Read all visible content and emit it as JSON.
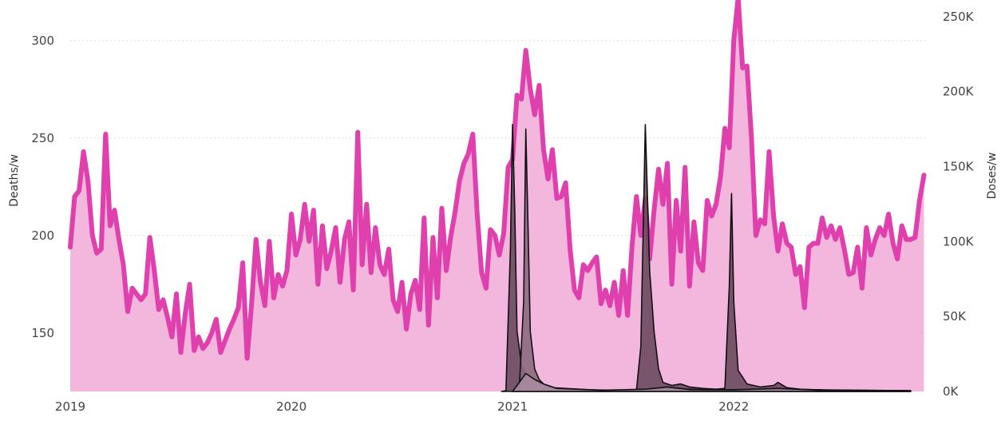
{
  "chart_data": {
    "type": "area",
    "title": "",
    "ylabel": "Deaths/w",
    "y2label": "Doses/w",
    "ylim": [
      120,
      320
    ],
    "y2lim": [
      0,
      260000
    ],
    "xlim": [
      2019.0,
      2022.88
    ],
    "grid": true,
    "x_ticks": [
      {
        "value": 2019,
        "label": "2019"
      },
      {
        "value": 2020,
        "label": "2020"
      },
      {
        "value": 2021,
        "label": "2021"
      },
      {
        "value": 2022,
        "label": "2022"
      }
    ],
    "y_ticks": [
      {
        "value": 150,
        "label": "150"
      },
      {
        "value": 200,
        "label": "200"
      },
      {
        "value": 250,
        "label": "250"
      },
      {
        "value": 300,
        "label": "300"
      }
    ],
    "y2_ticks": [
      {
        "value": 0,
        "label": "0K"
      },
      {
        "value": 50000,
        "label": "50K"
      },
      {
        "value": 100000,
        "label": "100K"
      },
      {
        "value": 150000,
        "label": "150K"
      },
      {
        "value": 200000,
        "label": "200K"
      },
      {
        "value": 250000,
        "label": "250K"
      }
    ],
    "colors": {
      "deaths_line": "#e040ad",
      "deaths_fill": "#f3b6dc",
      "doses_fill_1": "#6b4a5e",
      "doses_fill_2": "#8c6a80",
      "doses_fill_3": "#a88ca0",
      "doses_stroke": "#111111"
    },
    "series": [
      {
        "axis": "left",
        "style": "line-area",
        "points": [
          [
            2019.0,
            194
          ],
          [
            2019.02,
            220
          ],
          [
            2019.04,
            223
          ],
          [
            2019.06,
            243
          ],
          [
            2019.08,
            228
          ],
          [
            2019.1,
            200
          ],
          [
            2019.12,
            191
          ],
          [
            2019.14,
            193
          ],
          [
            2019.16,
            252
          ],
          [
            2019.18,
            205
          ],
          [
            2019.2,
            213
          ],
          [
            2019.22,
            198
          ],
          [
            2019.24,
            185
          ],
          [
            2019.26,
            161
          ],
          [
            2019.28,
            173
          ],
          [
            2019.3,
            170
          ],
          [
            2019.32,
            167
          ],
          [
            2019.34,
            170
          ],
          [
            2019.36,
            199
          ],
          [
            2019.38,
            182
          ],
          [
            2019.4,
            162
          ],
          [
            2019.42,
            167
          ],
          [
            2019.44,
            158
          ],
          [
            2019.46,
            148
          ],
          [
            2019.48,
            170
          ],
          [
            2019.5,
            140
          ],
          [
            2019.52,
            160
          ],
          [
            2019.54,
            175
          ],
          [
            2019.56,
            141
          ],
          [
            2019.58,
            148
          ],
          [
            2019.6,
            142
          ],
          [
            2019.62,
            145
          ],
          [
            2019.64,
            150
          ],
          [
            2019.66,
            157
          ],
          [
            2019.68,
            140
          ],
          [
            2019.7,
            146
          ],
          [
            2019.72,
            152
          ],
          [
            2019.74,
            157
          ],
          [
            2019.76,
            163
          ],
          [
            2019.78,
            186
          ],
          [
            2019.8,
            137
          ],
          [
            2019.82,
            165
          ],
          [
            2019.84,
            198
          ],
          [
            2019.86,
            176
          ],
          [
            2019.88,
            164
          ],
          [
            2019.9,
            197
          ],
          [
            2019.92,
            168
          ],
          [
            2019.94,
            180
          ],
          [
            2019.96,
            174
          ],
          [
            2019.98,
            182
          ],
          [
            2020.0,
            211
          ],
          [
            2020.02,
            190
          ],
          [
            2020.04,
            198
          ],
          [
            2020.06,
            216
          ],
          [
            2020.08,
            197
          ],
          [
            2020.1,
            213
          ],
          [
            2020.12,
            175
          ],
          [
            2020.14,
            205
          ],
          [
            2020.16,
            183
          ],
          [
            2020.18,
            192
          ],
          [
            2020.2,
            204
          ],
          [
            2020.22,
            176
          ],
          [
            2020.24,
            198
          ],
          [
            2020.26,
            207
          ],
          [
            2020.28,
            172
          ],
          [
            2020.3,
            253
          ],
          [
            2020.32,
            185
          ],
          [
            2020.34,
            216
          ],
          [
            2020.36,
            181
          ],
          [
            2020.38,
            204
          ],
          [
            2020.4,
            185
          ],
          [
            2020.42,
            180
          ],
          [
            2020.44,
            193
          ],
          [
            2020.46,
            167
          ],
          [
            2020.48,
            161
          ],
          [
            2020.5,
            176
          ],
          [
            2020.52,
            152
          ],
          [
            2020.54,
            170
          ],
          [
            2020.56,
            177
          ],
          [
            2020.58,
            162
          ],
          [
            2020.6,
            209
          ],
          [
            2020.62,
            154
          ],
          [
            2020.64,
            199
          ],
          [
            2020.66,
            168
          ],
          [
            2020.68,
            214
          ],
          [
            2020.7,
            182
          ],
          [
            2020.72,
            199
          ],
          [
            2020.74,
            212
          ],
          [
            2020.76,
            228
          ],
          [
            2020.78,
            237
          ],
          [
            2020.8,
            242
          ],
          [
            2020.82,
            252
          ],
          [
            2020.84,
            211
          ],
          [
            2020.86,
            181
          ],
          [
            2020.88,
            173
          ],
          [
            2020.9,
            203
          ],
          [
            2020.92,
            200
          ],
          [
            2020.94,
            190
          ],
          [
            2020.96,
            201
          ],
          [
            2020.98,
            235
          ],
          [
            2021.0,
            239
          ],
          [
            2021.02,
            272
          ],
          [
            2021.04,
            270
          ],
          [
            2021.06,
            295
          ],
          [
            2021.08,
            275
          ],
          [
            2021.1,
            262
          ],
          [
            2021.12,
            277
          ],
          [
            2021.14,
            244
          ],
          [
            2021.16,
            229
          ],
          [
            2021.18,
            244
          ],
          [
            2021.2,
            219
          ],
          [
            2021.22,
            220
          ],
          [
            2021.24,
            227
          ],
          [
            2021.26,
            193
          ],
          [
            2021.28,
            172
          ],
          [
            2021.3,
            168
          ],
          [
            2021.32,
            185
          ],
          [
            2021.34,
            182
          ],
          [
            2021.36,
            186
          ],
          [
            2021.38,
            189
          ],
          [
            2021.4,
            165
          ],
          [
            2021.42,
            172
          ],
          [
            2021.44,
            164
          ],
          [
            2021.46,
            176
          ],
          [
            2021.48,
            159
          ],
          [
            2021.5,
            182
          ],
          [
            2021.52,
            159
          ],
          [
            2021.54,
            194
          ],
          [
            2021.56,
            220
          ],
          [
            2021.58,
            200
          ],
          [
            2021.6,
            219
          ],
          [
            2021.62,
            188
          ],
          [
            2021.64,
            213
          ],
          [
            2021.66,
            234
          ],
          [
            2021.68,
            216
          ],
          [
            2021.7,
            237
          ],
          [
            2021.72,
            175
          ],
          [
            2021.74,
            218
          ],
          [
            2021.76,
            192
          ],
          [
            2021.78,
            235
          ],
          [
            2021.8,
            174
          ],
          [
            2021.82,
            207
          ],
          [
            2021.84,
            186
          ],
          [
            2021.86,
            182
          ],
          [
            2021.88,
            218
          ],
          [
            2021.9,
            210
          ],
          [
            2021.92,
            216
          ],
          [
            2021.94,
            230
          ],
          [
            2021.96,
            255
          ],
          [
            2021.98,
            245
          ],
          [
            2022.0,
            300
          ],
          [
            2022.02,
            322
          ],
          [
            2022.04,
            286
          ],
          [
            2022.06,
            287
          ],
          [
            2022.08,
            250
          ],
          [
            2022.1,
            200
          ],
          [
            2022.12,
            208
          ],
          [
            2022.14,
            206
          ],
          [
            2022.16,
            243
          ],
          [
            2022.18,
            210
          ],
          [
            2022.2,
            192
          ],
          [
            2022.22,
            206
          ],
          [
            2022.24,
            196
          ],
          [
            2022.26,
            194
          ],
          [
            2022.28,
            180
          ],
          [
            2022.3,
            184
          ],
          [
            2022.32,
            163
          ],
          [
            2022.34,
            194
          ],
          [
            2022.36,
            196
          ],
          [
            2022.38,
            196
          ],
          [
            2022.4,
            209
          ],
          [
            2022.42,
            199
          ],
          [
            2022.44,
            205
          ],
          [
            2022.46,
            198
          ],
          [
            2022.48,
            204
          ],
          [
            2022.5,
            193
          ],
          [
            2022.52,
            180
          ],
          [
            2022.54,
            181
          ],
          [
            2022.56,
            194
          ],
          [
            2022.58,
            173
          ],
          [
            2022.6,
            204
          ],
          [
            2022.62,
            190
          ],
          [
            2022.64,
            198
          ],
          [
            2022.66,
            204
          ],
          [
            2022.68,
            200
          ],
          [
            2022.7,
            211
          ],
          [
            2022.72,
            196
          ],
          [
            2022.74,
            188
          ],
          [
            2022.76,
            205
          ],
          [
            2022.78,
            198
          ],
          [
            2022.8,
            198
          ],
          [
            2022.82,
            199
          ],
          [
            2022.84,
            218
          ],
          [
            2022.86,
            231
          ]
        ]
      },
      {
        "axis": "right",
        "style": "area",
        "points": [
          [
            2020.95,
            0
          ],
          [
            2020.97,
            500
          ],
          [
            2020.99,
            95000
          ],
          [
            2021.0,
            178000
          ],
          [
            2021.01,
            120000
          ],
          [
            2021.02,
            40000
          ],
          [
            2021.04,
            18000
          ],
          [
            2021.06,
            10000
          ],
          [
            2021.08,
            6000
          ],
          [
            2021.1,
            5000
          ],
          [
            2021.12,
            7000
          ],
          [
            2021.14,
            4000
          ],
          [
            2021.18,
            2500
          ],
          [
            2021.3,
            1500
          ],
          [
            2021.4,
            800
          ],
          [
            2021.5,
            500
          ],
          [
            2021.56,
            800
          ],
          [
            2021.58,
            30000
          ],
          [
            2021.6,
            178000
          ],
          [
            2021.61,
            130000
          ],
          [
            2021.62,
            80000
          ],
          [
            2021.64,
            40000
          ],
          [
            2021.66,
            15000
          ],
          [
            2021.68,
            6000
          ],
          [
            2021.72,
            4000
          ],
          [
            2021.76,
            5000
          ],
          [
            2021.8,
            3000
          ],
          [
            2021.86,
            2000
          ],
          [
            2021.92,
            1500
          ],
          [
            2021.96,
            2000
          ],
          [
            2021.98,
            70000
          ],
          [
            2021.99,
            132000
          ],
          [
            2022.0,
            60000
          ],
          [
            2022.02,
            14000
          ],
          [
            2022.06,
            5000
          ],
          [
            2022.12,
            3000
          ],
          [
            2022.18,
            4000
          ],
          [
            2022.2,
            6000
          ],
          [
            2022.24,
            2500
          ],
          [
            2022.3,
            1500
          ],
          [
            2022.4,
            1000
          ],
          [
            2022.6,
            800
          ],
          [
            2022.8,
            500
          ]
        ]
      },
      {
        "axis": "right",
        "style": "area",
        "points": [
          [
            2021.0,
            0
          ],
          [
            2021.03,
            500
          ],
          [
            2021.05,
            60000
          ],
          [
            2021.06,
            175000
          ],
          [
            2021.07,
            110000
          ],
          [
            2021.08,
            40000
          ],
          [
            2021.1,
            15000
          ],
          [
            2021.12,
            8000
          ],
          [
            2021.14,
            5000
          ],
          [
            2021.16,
            3000
          ],
          [
            2021.2,
            2000
          ],
          [
            2021.3,
            1200
          ],
          [
            2021.5,
            700
          ],
          [
            2021.7,
            2000
          ],
          [
            2021.9,
            1000
          ],
          [
            2022.2,
            1500
          ],
          [
            2022.5,
            800
          ],
          [
            2022.8,
            500
          ]
        ]
      },
      {
        "axis": "right",
        "style": "area",
        "points": [
          [
            2021.0,
            0
          ],
          [
            2021.02,
            4000
          ],
          [
            2021.06,
            12000
          ],
          [
            2021.1,
            8000
          ],
          [
            2021.14,
            5000
          ],
          [
            2021.2,
            2000
          ],
          [
            2021.4,
            800
          ],
          [
            2021.6,
            1500
          ],
          [
            2021.7,
            3000
          ],
          [
            2021.8,
            1200
          ],
          [
            2022.0,
            1000
          ],
          [
            2022.2,
            2000
          ],
          [
            2022.4,
            700
          ],
          [
            2022.8,
            400
          ]
        ]
      }
    ]
  }
}
